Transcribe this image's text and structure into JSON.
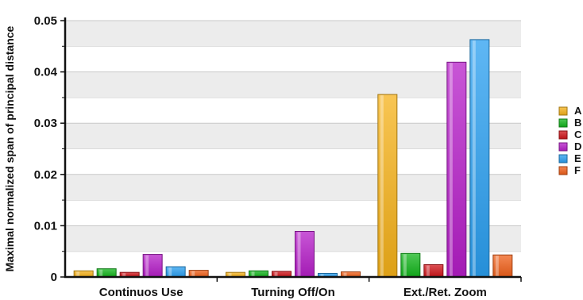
{
  "chart_data": {
    "type": "bar",
    "title": "",
    "xlabel": "",
    "ylabel": "Maximal normalized span of principal distance",
    "ylim": [
      0,
      0.05
    ],
    "yticks": [
      0,
      0.01,
      0.02,
      0.03,
      0.04,
      0.05
    ],
    "ytick_labels": [
      "0",
      "0.01",
      "0.02",
      "0.03",
      "0.04",
      "0.05"
    ],
    "grid": "horizontal bands",
    "legend": "right",
    "categories": [
      "Continuos Use",
      "Turning Off/On",
      "Ext./Ret. Zoom"
    ],
    "series": [
      {
        "name": "A",
        "color": "#f5b21a",
        "values": [
          0.0012,
          0.0009,
          0.0356
        ]
      },
      {
        "name": "B",
        "color": "#13b51c",
        "values": [
          0.0016,
          0.0012,
          0.0046
        ]
      },
      {
        "name": "C",
        "color": "#d0141a",
        "values": [
          0.0009,
          0.0011,
          0.0024
        ]
      },
      {
        "name": "D",
        "color": "#b51ec8",
        "values": [
          0.0044,
          0.0089,
          0.0419
        ]
      },
      {
        "name": "E",
        "color": "#2a9ff0",
        "values": [
          0.002,
          0.0007,
          0.0463
        ]
      },
      {
        "name": "F",
        "color": "#f0601a",
        "values": [
          0.0013,
          0.001,
          0.0043
        ]
      }
    ]
  }
}
